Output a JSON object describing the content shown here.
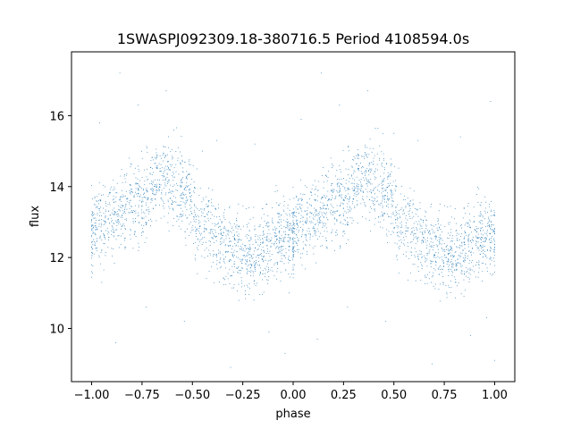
{
  "chart_data": {
    "type": "scatter",
    "title": "1SWASPJ092309.18-380716.5 Period 4108594.0s",
    "xlabel": "phase",
    "ylabel": "flux",
    "xlim": [
      -1.1,
      1.1
    ],
    "ylim": [
      8.5,
      17.8
    ],
    "xticks": [
      -1.0,
      -0.75,
      -0.5,
      -0.25,
      0.0,
      0.25,
      0.5,
      0.75,
      1.0
    ],
    "xtick_labels": [
      "−1.00",
      "−0.75",
      "−0.50",
      "−0.25",
      "0.00",
      "0.25",
      "0.50",
      "0.75",
      "1.00"
    ],
    "yticks": [
      10,
      12,
      14,
      16
    ],
    "ytick_labels": [
      "10",
      "12",
      "14",
      "16"
    ],
    "grid": false,
    "marker_color": "#1f77b4",
    "series": [
      {
        "description_of_trend_points": "folded light curve, points repeated for phase -1..0 and 0..1",
        "phase_profile": [
          [
            0.0,
            12.7
          ],
          [
            0.05,
            13.0
          ],
          [
            0.1,
            13.3
          ],
          [
            0.15,
            13.3
          ],
          [
            0.2,
            13.5
          ],
          [
            0.25,
            13.6
          ],
          [
            0.3,
            14.0
          ],
          [
            0.35,
            14.2
          ],
          [
            0.4,
            14.1
          ],
          [
            0.45,
            13.9
          ],
          [
            0.5,
            13.4
          ],
          [
            0.55,
            12.9
          ],
          [
            0.6,
            12.7
          ],
          [
            0.65,
            12.4
          ],
          [
            0.7,
            12.2
          ],
          [
            0.75,
            12.1
          ],
          [
            0.8,
            12.0
          ],
          [
            0.85,
            12.3
          ],
          [
            0.9,
            12.5
          ],
          [
            0.95,
            12.6
          ],
          [
            1.0,
            12.7
          ]
        ]
      }
    ],
    "outliers": [
      [
        -0.96,
        15.8
      ],
      [
        -0.95,
        11.3
      ],
      [
        -0.86,
        17.2
      ],
      [
        -0.77,
        16.3
      ],
      [
        -0.63,
        16.7
      ],
      [
        -0.88,
        9.6
      ],
      [
        -0.31,
        8.9
      ],
      [
        -0.45,
        15.0
      ],
      [
        -0.19,
        15.2
      ],
      [
        -0.04,
        9.3
      ],
      [
        0.04,
        15.9
      ],
      [
        0.12,
        9.7
      ],
      [
        0.14,
        17.2
      ],
      [
        0.23,
        16.3
      ],
      [
        0.37,
        16.7
      ],
      [
        0.5,
        15.5
      ],
      [
        0.69,
        9.0
      ],
      [
        0.83,
        15.4
      ],
      [
        0.96,
        10.3
      ],
      [
        0.98,
        16.4
      ],
      [
        1.0,
        9.1
      ],
      [
        -0.02,
        11.0
      ],
      [
        0.46,
        10.2
      ],
      [
        -0.54,
        10.2
      ],
      [
        0.27,
        10.6
      ],
      [
        -0.73,
        10.6
      ],
      [
        0.62,
        15.3
      ],
      [
        -0.38,
        15.3
      ],
      [
        0.88,
        9.8
      ],
      [
        -0.12,
        9.9
      ]
    ]
  }
}
